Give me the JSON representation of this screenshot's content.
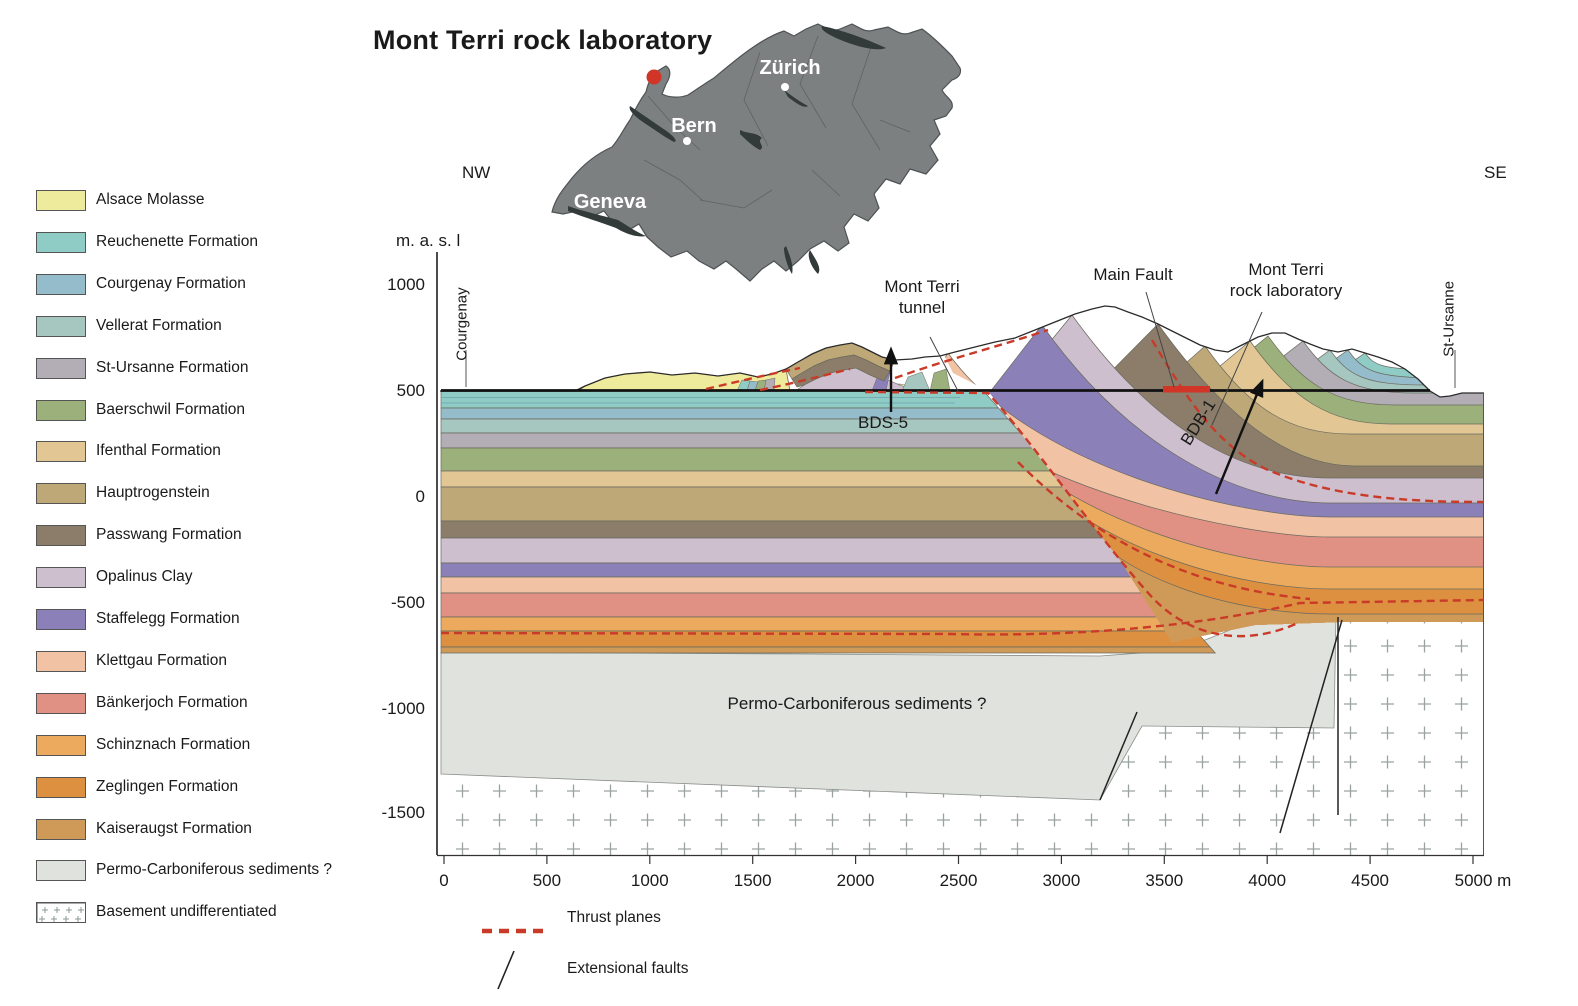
{
  "title": "Mont Terri rock laboratory",
  "map": {
    "land_color": "#7d8081",
    "lake_color": "#333a3a",
    "border_color": "#4d5253",
    "marker_color": "#d03527",
    "cities": [
      {
        "name": "Zürich"
      },
      {
        "name": "Bern"
      },
      {
        "name": "Geneva"
      }
    ]
  },
  "section": {
    "compass_left": "NW",
    "compass_right": "SE",
    "elev_axis_label": "m. a. s. l",
    "y_ticks": [
      "1000",
      "500",
      "0",
      "-500",
      "-1000",
      "-1500"
    ],
    "x_ticks": [
      "0",
      "500",
      "1000",
      "1500",
      "2000",
      "2500",
      "3000",
      "3500",
      "4000",
      "4500",
      "5000 m"
    ],
    "locations": {
      "left": "Courgenay",
      "right": "St-Ursanne"
    },
    "labels": {
      "tunnel_line1": "Mont Terri",
      "tunnel_line2": "tunnel",
      "main_fault": "Main Fault",
      "rocklab_line1": "Mont Terri",
      "rocklab_line2": "rock laboratory",
      "bds5": "BDS-5",
      "bdb1": "BDB-1"
    },
    "thrust_color": "#c93a28",
    "lab_marker_color": "#d03527"
  },
  "formations": [
    {
      "key": "alsace",
      "label": "Alsace Molasse",
      "color": "#eeeb9d"
    },
    {
      "key": "reuchenette",
      "label": "Reuchenette Formation",
      "color": "#8fccc5"
    },
    {
      "key": "courgenay",
      "label": "Courgenay Formation",
      "color": "#95bcca"
    },
    {
      "key": "vellerat",
      "label": "Vellerat Formation",
      "color": "#a6c6c0"
    },
    {
      "key": "stursanne",
      "label": "St-Ursanne Formation",
      "color": "#b3adb5"
    },
    {
      "key": "baerschwil",
      "label": "Baerschwil Formation",
      "color": "#9cb07b"
    },
    {
      "key": "ifenthal",
      "label": "Ifenthal Formation",
      "color": "#e2c795"
    },
    {
      "key": "hauptrogenstein",
      "label": "Hauptrogenstein",
      "color": "#bfa878"
    },
    {
      "key": "passwang",
      "label": "Passwang Formation",
      "color": "#8b7d6a"
    },
    {
      "key": "opalinus",
      "label": "Opalinus Clay",
      "color": "#cdbfcd"
    },
    {
      "key": "staffelegg",
      "label": "Staffelegg Formation",
      "color": "#8b81b8"
    },
    {
      "key": "klettgau",
      "label": "Klettgau Formation",
      "color": "#f2c2a4"
    },
    {
      "key": "baenkerjoch",
      "label": "Bänkerjoch Formation",
      "color": "#e19184"
    },
    {
      "key": "schinznach",
      "label": "Schinznach Formation",
      "color": "#ebaa5e"
    },
    {
      "key": "zeglingen",
      "label": "Zeglingen Formation",
      "color": "#dd9040"
    },
    {
      "key": "kaiseraugst",
      "label": "Kaiseraugst Formation",
      "color": "#cf9a58"
    },
    {
      "key": "permo",
      "label": "Permo-Carboniferous sediments ?",
      "color": "#dfe2dd"
    },
    {
      "key": "basement",
      "label": "Basement undifferentiated",
      "color": "#ffffff"
    }
  ],
  "fault_legend": [
    {
      "label": "Thrust planes",
      "type": "thrust"
    },
    {
      "label": "Extensional faults",
      "type": "extensional"
    }
  ]
}
